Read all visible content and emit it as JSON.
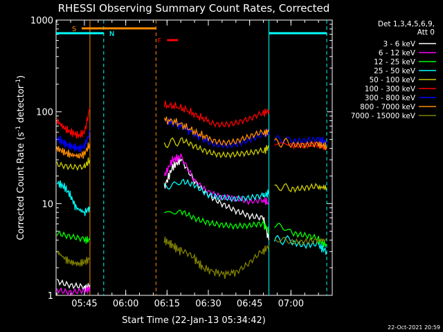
{
  "chart_data": {
    "type": "line",
    "title": "RHESSI Observing Summary Count Rates, Corrected",
    "xlabel": "Start Time (22-Jan-13 05:34:42)",
    "ylabel": "Corrected Count Rate (s",
    "ylabel_sup1": "-1",
    "ylabel_mid": " detector",
    "ylabel_sup2": "-1",
    "ylabel_end": ")",
    "yscale": "log",
    "ylim": [
      1,
      1000
    ],
    "xlim_minutes": [
      "05:34:42",
      "07:15:00"
    ],
    "x_ticks": [
      "05:45",
      "06:00",
      "06:15",
      "06:30",
      "06:45",
      "07:00"
    ],
    "y_ticks": [
      "1",
      "10",
      "100",
      "1000"
    ],
    "legend_header": [
      "Det 1,3,4,5,6,9,",
      "Att 0"
    ],
    "timestamp": "22-Oct-2021 20:59",
    "flags": [
      {
        "label": "S",
        "color": "#ff8c00",
        "start": "05:44:00",
        "end": "06:11:00"
      },
      {
        "label": "N",
        "color": "#00ffff",
        "start": "05:34:42",
        "end": "05:52:00"
      },
      {
        "label": "N",
        "color": "#00ffff",
        "start": "06:52:00",
        "end": "07:13:00"
      },
      {
        "label": "F",
        "color": "#ff0000",
        "start": "06:15:00",
        "end": "06:19:00"
      }
    ],
    "series": [
      {
        "name": "3 - 6 keV",
        "color": "#ffffff",
        "segments": [
          {
            "t": [
              "05:35",
              "05:40",
              "05:45",
              "05:47"
            ],
            "y": [
              1.5,
              1.3,
              1.2,
              1.3
            ]
          },
          {
            "t": [
              "06:14",
              "06:17",
              "06:20",
              "06:25",
              "06:30",
              "06:35",
              "06:40",
              "06:45",
              "06:50",
              "06:52"
            ],
            "y": [
              15,
              25,
              30,
              18,
              13,
              10,
              8,
              7,
              7,
              4
            ]
          }
        ]
      },
      {
        "name": "6 - 12 keV",
        "color": "#ff00ff",
        "segments": [
          {
            "t": [
              "05:35",
              "05:40",
              "05:45",
              "05:47"
            ],
            "y": [
              1.2,
              1.1,
              1.1,
              1.2
            ]
          },
          {
            "t": [
              "06:14",
              "06:17",
              "06:20",
              "06:25",
              "06:30",
              "06:35",
              "06:40",
              "06:45",
              "06:50",
              "06:52"
            ],
            "y": [
              20,
              30,
              32,
              18,
              14,
              12,
              11,
              10,
              11,
              10
            ]
          }
        ]
      },
      {
        "name": "12 - 25 keV",
        "color": "#00ff00",
        "segments": [
          {
            "t": [
              "05:35",
              "05:40",
              "05:45",
              "05:47"
            ],
            "y": [
              5,
              4.5,
              4,
              4
            ]
          },
          {
            "t": [
              "06:14",
              "06:20",
              "06:25",
              "06:30",
              "06:35",
              "06:40",
              "06:45",
              "06:50",
              "06:52"
            ],
            "y": [
              8,
              8,
              7,
              6.5,
              6,
              5.5,
              5.5,
              6,
              5
            ]
          },
          {
            "t": [
              "06:54",
              "07:00",
              "07:05",
              "07:10",
              "07:13"
            ],
            "y": [
              6,
              5,
              4.5,
              4,
              3.5
            ]
          }
        ]
      },
      {
        "name": "25 - 50 keV",
        "color": "#00ffff",
        "segments": [
          {
            "t": [
              "05:35",
              "05:38",
              "05:40",
              "05:42",
              "05:45",
              "05:47"
            ],
            "y": [
              17,
              15,
              12,
              9,
              8,
              9
            ]
          },
          {
            "t": [
              "06:14",
              "06:20",
              "06:25",
              "06:30",
              "06:35",
              "06:40",
              "06:45",
              "06:50",
              "06:52"
            ],
            "y": [
              15,
              17,
              16,
              13,
              12,
              11,
              11,
              12,
              13
            ]
          },
          {
            "t": [
              "06:54",
              "07:00",
              "07:05",
              "07:10",
              "07:13"
            ],
            "y": [
              4,
              4,
              3.5,
              3.5,
              3
            ]
          }
        ]
      },
      {
        "name": "50 - 100 keV",
        "color": "#cccc00",
        "segments": [
          {
            "t": [
              "05:35",
              "05:40",
              "05:45",
              "05:47"
            ],
            "y": [
              28,
              26,
              25,
              30
            ]
          },
          {
            "t": [
              "06:14",
              "06:20",
              "06:25",
              "06:30",
              "06:35",
              "06:40",
              "06:45",
              "06:50",
              "06:52"
            ],
            "y": [
              45,
              48,
              42,
              38,
              35,
              34,
              34,
              37,
              42
            ]
          },
          {
            "t": [
              "06:54",
              "07:00",
              "07:05",
              "07:10",
              "07:13"
            ],
            "y": [
              15,
              15,
              15,
              15,
              15
            ]
          }
        ]
      },
      {
        "name": "100 - 300 keV",
        "color": "#ff0000",
        "segments": [
          {
            "t": [
              "05:35",
              "05:38",
              "05:40",
              "05:43",
              "05:45",
              "05:47"
            ],
            "y": [
              80,
              65,
              60,
              55,
              60,
              110
            ]
          },
          {
            "t": [
              "06:14",
              "06:18",
              "06:22",
              "06:26",
              "06:30",
              "06:35",
              "06:40",
              "06:45",
              "06:50",
              "06:52"
            ],
            "y": [
              118,
              115,
              105,
              90,
              80,
              75,
              75,
              80,
              95,
              105
            ]
          },
          {
            "t": [
              "06:54",
              "07:00",
              "07:05",
              "07:10",
              "07:13"
            ],
            "y": [
              45,
              45,
              44,
              43,
              40
            ]
          }
        ]
      },
      {
        "name": "300 - 800 keV",
        "color": "#0000ff",
        "segments": [
          {
            "t": [
              "05:35",
              "05:38",
              "05:40",
              "05:43",
              "05:45",
              "05:47"
            ],
            "y": [
              52,
              45,
              42,
              40,
              42,
              60
            ]
          },
          {
            "t": [
              "06:14",
              "06:18",
              "06:22",
              "06:26",
              "06:30",
              "06:35",
              "06:40",
              "06:45",
              "06:50",
              "06:52"
            ],
            "y": [
              80,
              75,
              65,
              55,
              48,
              45,
              44,
              47,
              55,
              60
            ]
          },
          {
            "t": [
              "06:54",
              "07:00",
              "07:05",
              "07:10",
              "07:13"
            ],
            "y": [
              50,
              50,
              50,
              49,
              47
            ]
          }
        ]
      },
      {
        "name": "800 - 7000 keV",
        "color": "#ff8c00",
        "segments": [
          {
            "t": [
              "05:35",
              "05:38",
              "05:40",
              "05:43",
              "05:45",
              "05:47"
            ],
            "y": [
              40,
              36,
              34,
              33,
              35,
              45
            ]
          },
          {
            "t": [
              "06:14",
              "06:18",
              "06:22",
              "06:26",
              "06:30",
              "06:35",
              "06:40",
              "06:45",
              "06:50",
              "06:52"
            ],
            "y": [
              82,
              78,
              68,
              58,
              52,
              48,
              48,
              52,
              58,
              62
            ]
          },
          {
            "t": [
              "06:54",
              "07:00",
              "07:05",
              "07:10",
              "07:13"
            ],
            "y": [
              46,
              46,
              45,
              44,
              42
            ]
          }
        ]
      },
      {
        "name": "7000 - 15000 keV",
        "color": "#808000",
        "segments": [
          {
            "t": [
              "05:35",
              "05:38",
              "05:40",
              "05:43",
              "05:45",
              "05:47"
            ],
            "y": [
              3,
              2.5,
              2.3,
              2.2,
              2.3,
              2.5
            ]
          },
          {
            "t": [
              "06:14",
              "06:17",
              "06:20",
              "06:25",
              "06:28",
              "06:32",
              "06:36",
              "06:40",
              "06:45",
              "06:50",
              "06:52"
            ],
            "y": [
              4,
              3.5,
              3,
              2.5,
              2,
              1.8,
              1.7,
              1.8,
              2.2,
              3,
              3.5
            ]
          },
          {
            "t": [
              "06:54",
              "07:00",
              "07:05",
              "07:10",
              "07:13"
            ],
            "y": [
              4,
              4,
              4,
              4,
              4
            ]
          }
        ]
      }
    ],
    "vlines": [
      {
        "t": "05:47:00",
        "color": "#ff8c00",
        "style": "solid"
      },
      {
        "t": "05:52:00",
        "color": "#00ffff",
        "style": "dashed"
      },
      {
        "t": "06:11:00",
        "color": "#ff8c00",
        "style": "dashed"
      },
      {
        "t": "06:52:00",
        "color": "#00ffff",
        "style": "solid"
      },
      {
        "t": "07:13:00",
        "color": "#00ffff",
        "style": "dashed"
      }
    ]
  }
}
